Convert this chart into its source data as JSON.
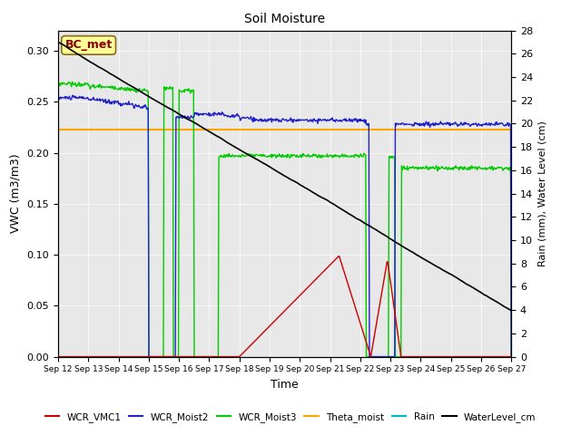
{
  "title": "Soil Moisture",
  "xlabel": "Time",
  "ylabel_left": "VWC (m3/m3)",
  "ylabel_right": "Rain (mm), Water Level (cm)",
  "xlim": [
    0,
    15
  ],
  "ylim_left": [
    0.0,
    0.32
  ],
  "ylim_right": [
    0,
    28
  ],
  "xtick_labels": [
    "Sep 12",
    "Sep 13",
    "Sep 14",
    "Sep 15",
    "Sep 16",
    "Sep 17",
    "Sep 18",
    "Sep 19",
    "Sep 20",
    "Sep 21",
    "Sep 22",
    "Sep 23",
    "Sep 24",
    "Sep 25",
    "Sep 26",
    "Sep 27"
  ],
  "annotation_text": "BC_met",
  "annotation_color": "#8B0000",
  "annotation_bg": "#FFFF99",
  "fig_bg": "#ffffff",
  "plot_bg": "#E8E8E8",
  "legend_items": [
    {
      "label": "WCR_VMC1",
      "color": "#CC0000"
    },
    {
      "label": "WCR_Moist2",
      "color": "#0000CC"
    },
    {
      "label": "WCR_Moist3",
      "color": "#00CC00"
    },
    {
      "label": "Theta_moist",
      "color": "#FFA500"
    },
    {
      "label": "Rain",
      "color": "#00CCCC"
    },
    {
      "label": "WaterLevel_cm",
      "color": "#000000"
    }
  ],
  "yticks_left": [
    0.0,
    0.05,
    0.1,
    0.15,
    0.2,
    0.25,
    0.3
  ],
  "yticks_right": [
    0,
    2,
    4,
    6,
    8,
    10,
    12,
    14,
    16,
    18,
    20,
    22,
    24,
    26,
    28
  ]
}
